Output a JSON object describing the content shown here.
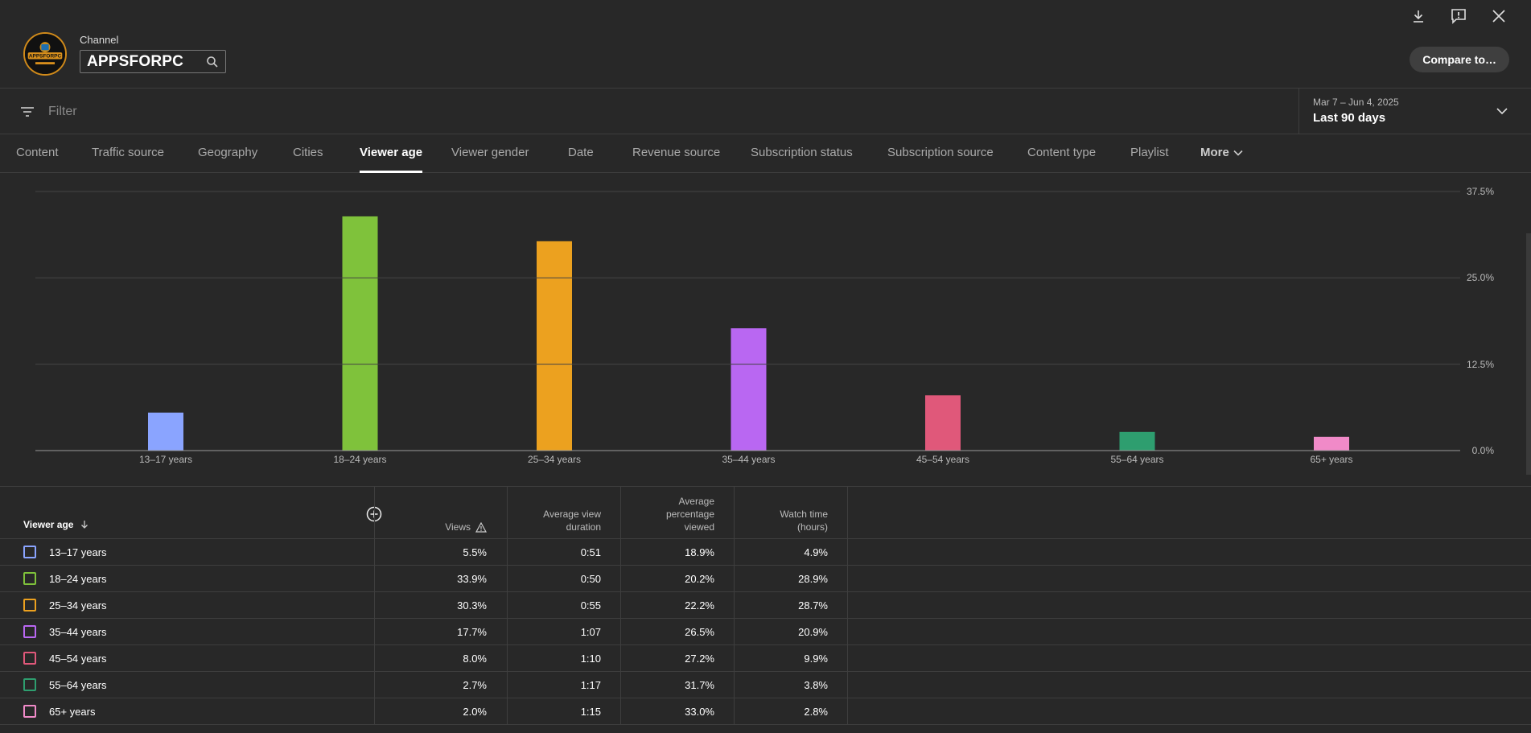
{
  "header": {
    "channel_label": "Channel",
    "channel_name": "APPSFORPC",
    "avatar_text": "APPSFORPC",
    "compare_label": "Compare to…"
  },
  "filter": {
    "placeholder": "Filter"
  },
  "date": {
    "range": "Mar 7 – Jun 4, 2025",
    "period": "Last 90 days"
  },
  "tabs": [
    {
      "label": "Content"
    },
    {
      "label": "Traffic source"
    },
    {
      "label": "Geography"
    },
    {
      "label": "Cities"
    },
    {
      "label": "Viewer age"
    },
    {
      "label": "Viewer gender"
    },
    {
      "label": "Date"
    },
    {
      "label": "Revenue source"
    },
    {
      "label": "Subscription status"
    },
    {
      "label": "Subscription source"
    },
    {
      "label": "Content type"
    },
    {
      "label": "Playlist"
    },
    {
      "label": "More"
    }
  ],
  "active_tab": "Viewer age",
  "chart_data": {
    "type": "bar",
    "categories": [
      "13–17 years",
      "18–24 years",
      "25–34 years",
      "35–44 years",
      "45–54 years",
      "55–64 years",
      "65+ years"
    ],
    "values": [
      5.5,
      33.9,
      30.3,
      17.7,
      8.0,
      2.7,
      2.0
    ],
    "colors": [
      "#8aa4ff",
      "#7fc23b",
      "#eca11f",
      "#b967f2",
      "#e0587a",
      "#2e9e6f",
      "#f08ac8"
    ],
    "yticks": [
      "0.0%",
      "12.5%",
      "25.0%",
      "37.5%"
    ],
    "ylim": [
      0,
      37.5
    ],
    "grid": true
  },
  "table": {
    "headers": {
      "age": "Viewer age",
      "views": "Views",
      "avg_duration": [
        "Average view",
        "duration"
      ],
      "avg_pct": [
        "Average",
        "percentage",
        "viewed"
      ],
      "watch_time": [
        "Watch time",
        "(hours)"
      ]
    },
    "rows": [
      {
        "age": "13–17 years",
        "views": "5.5%",
        "duration": "0:51",
        "pct": "18.9%",
        "watch": "4.9%"
      },
      {
        "age": "18–24 years",
        "views": "33.9%",
        "duration": "0:50",
        "pct": "20.2%",
        "watch": "28.9%"
      },
      {
        "age": "25–34 years",
        "views": "30.3%",
        "duration": "0:55",
        "pct": "22.2%",
        "watch": "28.7%"
      },
      {
        "age": "35–44 years",
        "views": "17.7%",
        "duration": "1:07",
        "pct": "26.5%",
        "watch": "20.9%"
      },
      {
        "age": "45–54 years",
        "views": "8.0%",
        "duration": "1:10",
        "pct": "27.2%",
        "watch": "9.9%"
      },
      {
        "age": "55–64 years",
        "views": "2.7%",
        "duration": "1:17",
        "pct": "31.7%",
        "watch": "3.8%"
      },
      {
        "age": "65+ years",
        "views": "2.0%",
        "duration": "1:15",
        "pct": "33.0%",
        "watch": "2.8%"
      }
    ]
  }
}
